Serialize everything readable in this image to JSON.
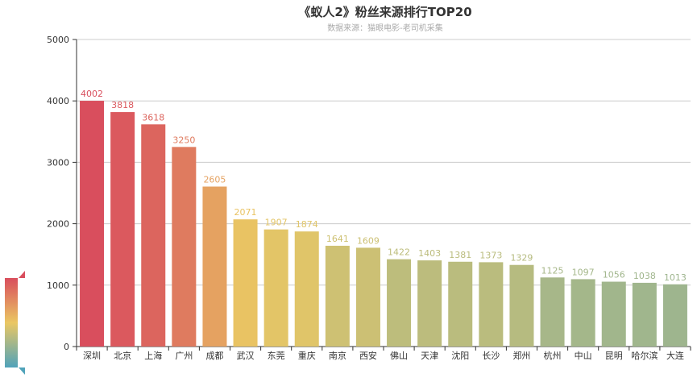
{
  "chart_data": {
    "type": "bar",
    "title": "《蚁人2》粉丝来源排行TOP20",
    "subtitle": "数据来源：猫眼电影-老司机采集",
    "categories": [
      "深圳",
      "北京",
      "上海",
      "广州",
      "成都",
      "武汉",
      "东莞",
      "重庆",
      "南京",
      "西安",
      "佛山",
      "天津",
      "沈阳",
      "长沙",
      "郑州",
      "杭州",
      "中山",
      "昆明",
      "哈尔滨",
      "大连"
    ],
    "values": [
      4002,
      3818,
      3618,
      3250,
      2605,
      2071,
      1907,
      1874,
      1641,
      1609,
      1422,
      1403,
      1381,
      1373,
      1329,
      1125,
      1097,
      1056,
      1038,
      1013
    ],
    "ylim": [
      0,
      5000
    ],
    "yticks": [
      0,
      1000,
      2000,
      3000,
      4000,
      5000
    ],
    "grid": true,
    "data_labels": true,
    "visual_map": {
      "min": 0,
      "max": 4002,
      "colors": [
        "#50a3ba",
        "#eac763",
        "#d94e5d"
      ],
      "placement": "bottom-left"
    }
  }
}
